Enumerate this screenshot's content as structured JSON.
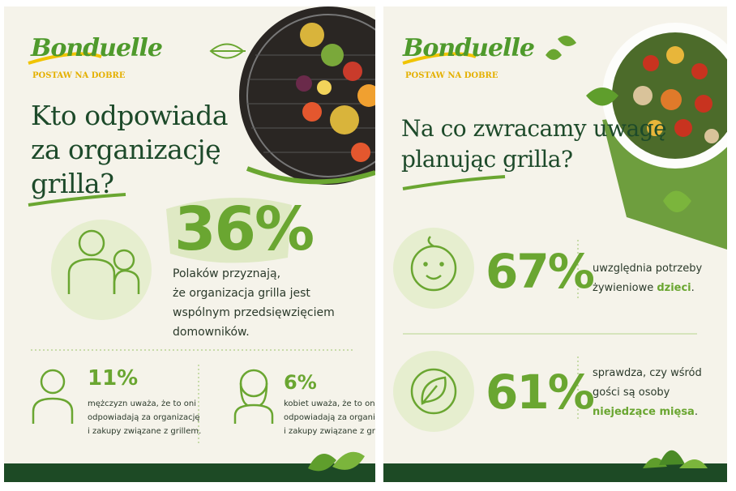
{
  "panels": [
    {
      "logo": "Bonduelle",
      "tagline": "POSTAW NA DOBRE",
      "title_lines": [
        "Kto odpowiada",
        "za organizację",
        "grilla?"
      ],
      "main_stat": {
        "number": "36%",
        "lines": [
          "Polaków przyznają,",
          "że organizacja grilla jest",
          "wspólnym przedsięwzięciem",
          "domowników."
        ]
      },
      "stats": [
        {
          "number": "11%",
          "lines": [
            "mężczyzn uważa, że to oni",
            "odpowiadają za organizację",
            "i zakupy związane z grillem."
          ]
        },
        {
          "number": "6%",
          "lines": [
            "kobiet uważa, że to one",
            "odpowiadają za organizacje",
            "i zakupy związane z grillem."
          ]
        }
      ]
    },
    {
      "logo": "Bonduelle",
      "tagline": "POSTAW NA DOBRE",
      "title_lines": [
        "Na co zwracamy uwagę",
        "planując grilla?"
      ],
      "stats": [
        {
          "number": "67%",
          "lines": [
            "uwzględnia potrzeby",
            "żywieniowe "
          ],
          "highlight": "dzieci",
          "end": "."
        },
        {
          "number": "61%",
          "lines": [
            "sprawdza, czy wśród",
            "gości są osoby"
          ],
          "highlight": "niejedzące mięsa",
          "end": "."
        }
      ]
    }
  ]
}
